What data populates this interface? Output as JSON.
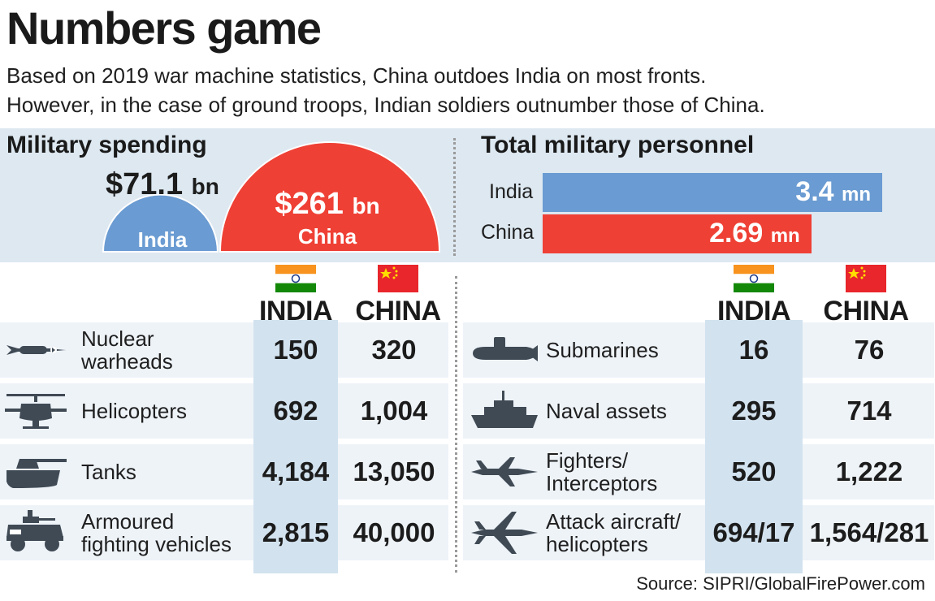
{
  "title": "Numbers game",
  "subtitle_lines": [
    "Based on 2019 war machine statistics, China outdoes India on most fronts.",
    "However, in the case of ground troops, Indian soldiers outnumber those of China."
  ],
  "spending": {
    "title": "Military spending",
    "india": {
      "name": "India",
      "amount": "$71.1",
      "unit": "bn",
      "value": 71.1
    },
    "china": {
      "name": "China",
      "amount": "$261",
      "unit": "bn",
      "value": 261
    }
  },
  "personnel": {
    "title": "Total military personnel",
    "india": {
      "name": "India",
      "amount": "3.4",
      "unit": "mn",
      "value": 3.4
    },
    "china": {
      "name": "China",
      "amount": "2.69",
      "unit": "mn",
      "value": 2.69
    }
  },
  "headers": {
    "india": "INDIA",
    "china": "CHINA"
  },
  "colors": {
    "india": "#6a9bd2",
    "china": "#ef4035",
    "icon": "#3f4a55",
    "panel": "#dde8f1"
  },
  "chart_data": [
    {
      "type": "pie",
      "title": "Military spending",
      "categories": [
        "India",
        "China"
      ],
      "values": [
        71.1,
        261
      ],
      "unit": "bn"
    },
    {
      "type": "bar",
      "title": "Total military personnel",
      "categories": [
        "India",
        "China"
      ],
      "values": [
        3.4,
        2.69
      ],
      "unit": "mn"
    },
    {
      "type": "table",
      "columns": [
        "INDIA",
        "CHINA"
      ],
      "rows": [
        {
          "label_lines": [
            "Nuclear",
            "warheads"
          ],
          "icon": "missile-icon",
          "india": "150",
          "china": "320"
        },
        {
          "label_lines": [
            "Helicopters"
          ],
          "icon": "helicopter-icon",
          "india": "692",
          "china": "1,004"
        },
        {
          "label_lines": [
            "Tanks"
          ],
          "icon": "tank-icon",
          "india": "4,184",
          "china": "13,050"
        },
        {
          "label_lines": [
            "Armoured",
            "fighting vehicles"
          ],
          "icon": "armoured-vehicle-icon",
          "india": "2,815",
          "china": "40,000"
        }
      ]
    },
    {
      "type": "table",
      "columns": [
        "INDIA",
        "CHINA"
      ],
      "rows": [
        {
          "label_lines": [
            "Submarines"
          ],
          "icon": "submarine-icon",
          "india": "16",
          "china": "76"
        },
        {
          "label_lines": [
            "Naval assets"
          ],
          "icon": "warship-icon",
          "india": "295",
          "china": "714"
        },
        {
          "label_lines": [
            "Fighters/",
            "Interceptors"
          ],
          "icon": "fighter-jet-icon",
          "india": "520",
          "china": "1,222"
        },
        {
          "label_lines": [
            "Attack aircraft/",
            "helicopters"
          ],
          "icon": "attack-jet-icon",
          "india": "694/17",
          "china": "1,564/281"
        }
      ]
    }
  ],
  "source": "Source: SIPRI/GlobalFirePower.com"
}
